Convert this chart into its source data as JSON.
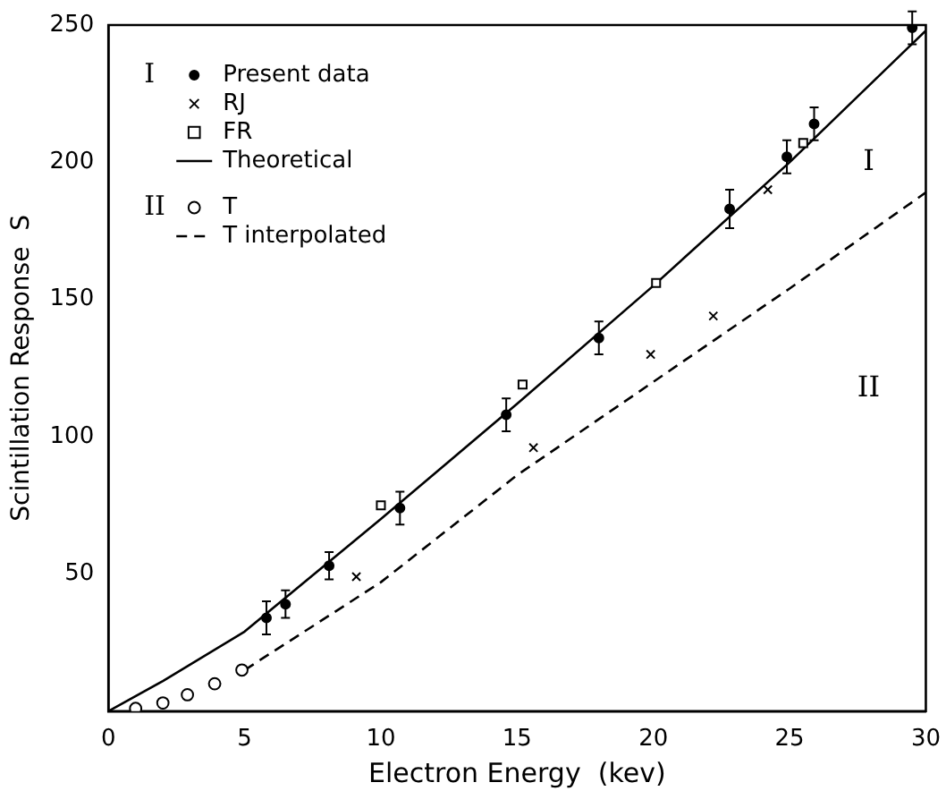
{
  "chart_data": {
    "type": "scatter",
    "xlabel": "Electron Energy  (kev)",
    "ylabel": "Scintillation Response  S",
    "xlim": [
      0,
      30
    ],
    "ylim": [
      0,
      250
    ],
    "xticks": [
      0,
      5,
      10,
      15,
      20,
      25,
      30
    ],
    "yticks": [
      50,
      100,
      150,
      200,
      250
    ],
    "grid": false,
    "legend": "top left",
    "series": [
      {
        "name": "Present data",
        "marker": "circle",
        "color": "#000000",
        "x": [
          5.8,
          6.5,
          8.1,
          10.7,
          14.6,
          18.0,
          22.8,
          24.9,
          25.9,
          29.5
        ],
        "values": [
          34,
          39,
          53,
          74,
          108,
          136,
          183,
          202,
          214,
          249
        ],
        "errors": [
          6,
          5,
          5,
          6,
          6,
          6,
          7,
          6,
          6,
          6
        ]
      },
      {
        "name": "RJ",
        "marker": "cross",
        "color": "#000000",
        "x": [
          9.1,
          15.6,
          19.9,
          22.2,
          24.2
        ],
        "values": [
          49,
          96,
          130,
          144,
          190
        ]
      },
      {
        "name": "FR",
        "marker": "square",
        "color": "#000000",
        "x": [
          10.0,
          15.2,
          20.1,
          25.5
        ],
        "values": [
          75,
          119,
          156,
          207
        ]
      },
      {
        "name": "Theoretical",
        "type": "line",
        "marker": "none",
        "line_style": "solid",
        "color": "#000000",
        "x": [
          0,
          2,
          5,
          10,
          15,
          20,
          25,
          30
        ],
        "values": [
          0,
          11,
          29,
          70,
          112,
          155,
          200,
          248
        ]
      },
      {
        "name": "T",
        "marker": "circle",
        "color": "#000000",
        "x": [
          1.0,
          2.0,
          2.9,
          3.9,
          4.9
        ],
        "values": [
          1,
          3,
          6,
          10,
          15
        ]
      },
      {
        "name": "T interpolated",
        "type": "line",
        "marker": "none",
        "line_style": "dashed",
        "color": "#000000",
        "x": [
          5,
          10,
          15,
          20,
          25,
          30
        ],
        "values": [
          15,
          47,
          86,
          120,
          154,
          189
        ]
      }
    ],
    "annotations": [
      "I",
      "II",
      "I",
      "II"
    ]
  }
}
